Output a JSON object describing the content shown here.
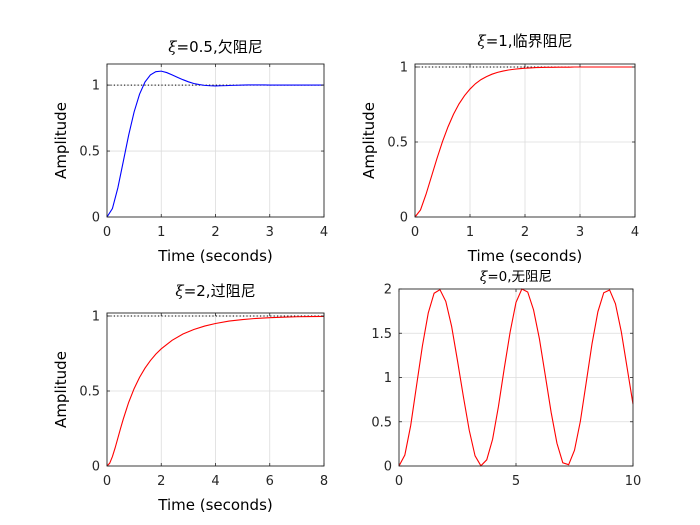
{
  "chart_data": [
    {
      "type": "line",
      "title": "=0.5,欠阻尼",
      "title_symbol": "ξ",
      "xlabel": "Time (seconds)",
      "ylabel": "Amplitude",
      "xlim": [
        0,
        4
      ],
      "ylim": [
        0,
        1.16
      ],
      "xticks": [
        0,
        1,
        2,
        3,
        4
      ],
      "yticks": [
        0,
        0.5,
        1
      ],
      "xtick_labels": [
        "0",
        "1",
        "2",
        "3",
        "4"
      ],
      "ytick_labels": [
        "0",
        "0.5",
        "1"
      ],
      "grid": true,
      "reference_line": 1,
      "series": [
        {
          "color": "#0000ff",
          "x": [
            0,
            0.1,
            0.2,
            0.3,
            0.4,
            0.5,
            0.6,
            0.7,
            0.8,
            0.9,
            1.0,
            1.1,
            1.2,
            1.3,
            1.4,
            1.5,
            1.6,
            1.7,
            1.8,
            1.9,
            2.0,
            2.1,
            2.2,
            2.3,
            2.4,
            2.5,
            2.6,
            2.7,
            2.8,
            2.9,
            3.0,
            3.1,
            3.2,
            3.3,
            3.4,
            3.5,
            3.6,
            3.7,
            3.8,
            3.9,
            4.0
          ],
          "values": [
            0,
            0.064,
            0.221,
            0.421,
            0.622,
            0.797,
            0.931,
            1.023,
            1.077,
            1.102,
            1.106,
            1.095,
            1.078,
            1.059,
            1.041,
            1.025,
            1.012,
            1.004,
            0.998,
            0.995,
            0.994,
            0.995,
            0.996,
            0.998,
            0.999,
            1.0,
            1.001,
            1.001,
            1.001,
            1.001,
            1.0,
            1.0,
            1.0,
            1.0,
            1.0,
            1.0,
            1.0,
            1.0,
            1.0,
            1.0,
            1.0
          ]
        }
      ]
    },
    {
      "type": "line",
      "title": "=1,临界阻尼",
      "title_symbol": "ξ",
      "xlabel": "Time (seconds)",
      "ylabel": "Amplitude",
      "xlim": [
        0,
        4
      ],
      "ylim": [
        0,
        1.02
      ],
      "xticks": [
        0,
        1,
        2,
        3,
        4
      ],
      "yticks": [
        0,
        0.5,
        1
      ],
      "xtick_labels": [
        "0",
        "1",
        "2",
        "3",
        "4"
      ],
      "ytick_labels": [
        "0",
        "0.5",
        "1"
      ],
      "grid": true,
      "reference_line": 1,
      "series": [
        {
          "color": "#ff0000",
          "x": [
            0,
            0.1,
            0.2,
            0.3,
            0.4,
            0.5,
            0.6,
            0.7,
            0.8,
            0.9,
            1.0,
            1.1,
            1.2,
            1.3,
            1.4,
            1.5,
            1.6,
            1.7,
            1.8,
            1.9,
            2.0,
            2.1,
            2.2,
            2.3,
            2.4,
            2.5,
            2.6,
            2.7,
            2.8,
            2.9,
            3.0,
            3.1,
            3.2,
            3.3,
            3.4,
            3.5,
            3.6,
            3.7,
            3.8,
            3.9,
            4.0
          ],
          "values": [
            0,
            0.047,
            0.151,
            0.271,
            0.391,
            0.503,
            0.601,
            0.685,
            0.754,
            0.809,
            0.853,
            0.889,
            0.916,
            0.936,
            0.952,
            0.964,
            0.973,
            0.98,
            0.985,
            0.989,
            0.992,
            0.994,
            0.996,
            0.997,
            0.998,
            0.998,
            0.999,
            0.999,
            0.999,
            1.0,
            1.0,
            1.0,
            1.0,
            1.0,
            1.0,
            1.0,
            1.0,
            1.0,
            1.0,
            1.0,
            1.0
          ]
        }
      ]
    },
    {
      "type": "line",
      "title": "=2,过阻尼",
      "title_symbol": "ξ",
      "xlabel": "Time (seconds)",
      "ylabel": "Amplitude",
      "xlim": [
        0,
        8
      ],
      "ylim": [
        0,
        1.02
      ],
      "xticks": [
        0,
        2,
        4,
        6,
        8
      ],
      "yticks": [
        0,
        0.5,
        1
      ],
      "xtick_labels": [
        "0",
        "2",
        "4",
        "6",
        "8"
      ],
      "ytick_labels": [
        "0",
        "0.5",
        "1"
      ],
      "grid": true,
      "reference_line": 1,
      "series": [
        {
          "color": "#ff0000",
          "x": [
            0,
            0.1,
            0.2,
            0.3,
            0.4,
            0.5,
            0.6,
            0.8,
            1.0,
            1.2,
            1.4,
            1.6,
            1.8,
            2.0,
            2.4,
            2.8,
            3.2,
            3.6,
            4.0,
            4.5,
            5.0,
            5.5,
            6.0,
            6.5,
            7.0,
            7.5,
            8.0
          ],
          "values": [
            0,
            0.019,
            0.063,
            0.121,
            0.186,
            0.251,
            0.313,
            0.425,
            0.516,
            0.591,
            0.652,
            0.703,
            0.746,
            0.781,
            0.838,
            0.88,
            0.91,
            0.933,
            0.95,
            0.966,
            0.976,
            0.984,
            0.989,
            0.992,
            0.995,
            0.996,
            0.997
          ]
        }
      ]
    },
    {
      "type": "line",
      "title": "=0,无阻尼",
      "title_symbol": "ξ",
      "xlabel": "",
      "ylabel": "",
      "xlim": [
        0,
        10
      ],
      "ylim": [
        0,
        2
      ],
      "xticks": [
        0,
        5,
        10
      ],
      "yticks": [
        0,
        0.5,
        1,
        1.5,
        2
      ],
      "xtick_labels": [
        "0",
        "5",
        "10"
      ],
      "ytick_labels": [
        "0",
        "0.5",
        "1",
        "1.5",
        "2"
      ],
      "grid": true,
      "reference_line": null,
      "series": [
        {
          "color": "#ff0000",
          "x": [
            0,
            0.25,
            0.5,
            0.75,
            1.0,
            1.25,
            1.5,
            1.75,
            2.0,
            2.25,
            2.5,
            2.75,
            3.0,
            3.25,
            3.5,
            3.75,
            4.0,
            4.25,
            4.5,
            4.75,
            5.0,
            5.25,
            5.5,
            5.75,
            6.0,
            6.25,
            6.5,
            6.75,
            7.0,
            7.25,
            7.5,
            7.75,
            8.0,
            8.25,
            8.5,
            8.75,
            9.0,
            9.25,
            9.5,
            9.75,
            10.0
          ],
          "values": [
            0,
            0.124,
            0.458,
            0.909,
            1.357,
            1.729,
            1.952,
            1.993,
            1.86,
            1.576,
            1.189,
            0.786,
            0.406,
            0.115,
            0.002,
            0.07,
            0.302,
            0.673,
            1.106,
            1.515,
            1.849,
            2.0,
            1.966,
            1.764,
            1.438,
            1.026,
            0.609,
            0.257,
            0.036,
            0.015,
            0.178,
            0.505,
            0.943,
            1.383,
            1.744,
            1.958,
            1.989,
            1.833,
            1.517,
            1.108,
            0.699
          ]
        }
      ]
    }
  ]
}
